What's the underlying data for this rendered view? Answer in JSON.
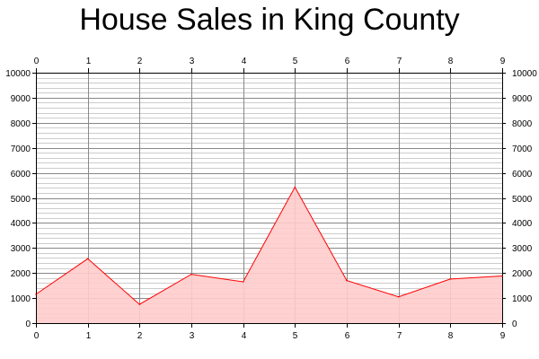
{
  "chart_data": {
    "type": "area",
    "title": "House Sales in King County",
    "xlabel": "",
    "ylabel": "",
    "x": [
      0,
      1,
      2,
      3,
      4,
      5,
      6,
      7,
      8,
      9
    ],
    "series": [
      {
        "values": [
          1150,
          2570,
          750,
          1950,
          1650,
          5430,
          1700,
          1050,
          1760,
          1880
        ]
      }
    ],
    "xlim": [
      0,
      9
    ],
    "ylim": [
      0,
      10000
    ],
    "x_ticks": [
      0,
      1,
      2,
      3,
      4,
      5,
      6,
      7,
      8,
      9
    ],
    "y_ticks": [
      0,
      1000,
      2000,
      3000,
      4000,
      5000,
      6000,
      7000,
      8000,
      9000,
      10000
    ],
    "y_minor_step": 200,
    "grid": true,
    "axes_mirrored": true,
    "colors": {
      "line": "#ff0000",
      "fill": "#ffcccc",
      "grid_major": "#888888",
      "grid_minor": "#cccccc",
      "axis": "#000000"
    }
  }
}
